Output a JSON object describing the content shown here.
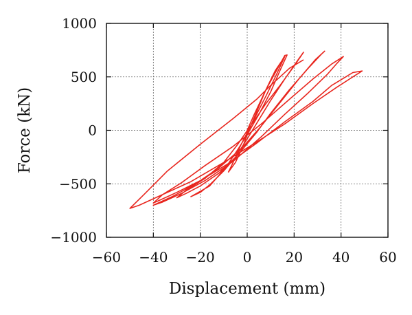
{
  "chart_data": {
    "type": "line",
    "title": "",
    "xlabel": "Displacement (mm)",
    "ylabel": "Force (kN)",
    "xlim": [
      -60,
      60
    ],
    "ylim": [
      -1000,
      1000
    ],
    "xticks": [
      -60,
      -40,
      -20,
      0,
      20,
      40,
      60
    ],
    "yticks": [
      -1000,
      -500,
      0,
      500,
      1000
    ],
    "xtick_labels": [
      "−60",
      "−40",
      "−20",
      "0",
      "20",
      "40",
      "60"
    ],
    "ytick_labels": [
      "−1000",
      "−500",
      "0",
      "500",
      "1000"
    ],
    "grid": true,
    "line_color": "#e8261e",
    "series": [
      {
        "points": [
          [
            0,
            0
          ],
          [
            3,
            150
          ],
          [
            8,
            380
          ],
          [
            12,
            560
          ],
          [
            16,
            690
          ],
          [
            12,
            500
          ],
          [
            8,
            320
          ],
          [
            4,
            150
          ],
          [
            0,
            -20
          ],
          [
            -3,
            -150
          ],
          [
            -6,
            -300
          ],
          [
            -8,
            -390
          ],
          [
            -5,
            -300
          ],
          [
            -2,
            -160
          ],
          [
            0,
            -40
          ],
          [
            3,
            120
          ],
          [
            8,
            380
          ],
          [
            16,
            700
          ],
          [
            17,
            705
          ],
          [
            14,
            560
          ],
          [
            10,
            360
          ],
          [
            5,
            150
          ],
          [
            0,
            -40
          ],
          [
            -4,
            -180
          ],
          [
            -8,
            -310
          ],
          [
            -12,
            -420
          ],
          [
            -16,
            -520
          ],
          [
            -24,
            -620
          ],
          [
            -20,
            -580
          ],
          [
            -16,
            -510
          ],
          [
            -10,
            -380
          ],
          [
            -5,
            -250
          ],
          [
            0,
            -80
          ],
          [
            5,
            100
          ],
          [
            10,
            280
          ],
          [
            16,
            480
          ],
          [
            22,
            670
          ],
          [
            24,
            730
          ],
          [
            20,
            600
          ],
          [
            14,
            420
          ],
          [
            8,
            250
          ],
          [
            2,
            60
          ],
          [
            -4,
            -130
          ],
          [
            -10,
            -300
          ],
          [
            -18,
            -450
          ],
          [
            -26,
            -560
          ],
          [
            -30,
            -630
          ],
          [
            -26,
            -590
          ],
          [
            -20,
            -520
          ],
          [
            -12,
            -400
          ],
          [
            -4,
            -230
          ],
          [
            4,
            -20
          ],
          [
            10,
            160
          ],
          [
            18,
            380
          ],
          [
            26,
            580
          ],
          [
            32,
            720
          ],
          [
            33,
            740
          ],
          [
            29,
            660
          ],
          [
            22,
            480
          ],
          [
            14,
            260
          ],
          [
            6,
            40
          ],
          [
            -2,
            -160
          ],
          [
            -12,
            -350
          ],
          [
            -22,
            -500
          ],
          [
            -32,
            -620
          ],
          [
            -40,
            -700
          ],
          [
            -36,
            -670
          ],
          [
            -28,
            -590
          ],
          [
            -18,
            -470
          ],
          [
            -6,
            -290
          ],
          [
            6,
            -60
          ],
          [
            16,
            150
          ],
          [
            26,
            350
          ],
          [
            34,
            520
          ],
          [
            38,
            620
          ],
          [
            41,
            690
          ],
          [
            36,
            620
          ],
          [
            28,
            480
          ],
          [
            18,
            290
          ],
          [
            6,
            60
          ],
          [
            -6,
            -150
          ],
          [
            -18,
            -330
          ],
          [
            -28,
            -490
          ],
          [
            -36,
            -600
          ],
          [
            -40,
            -680
          ],
          [
            -38,
            -660
          ],
          [
            -30,
            -580
          ],
          [
            -20,
            -470
          ],
          [
            -8,
            -310
          ],
          [
            4,
            -120
          ],
          [
            16,
            80
          ],
          [
            28,
            270
          ],
          [
            36,
            420
          ],
          [
            42,
            500
          ],
          [
            45,
            540
          ],
          [
            49,
            555
          ],
          [
            45,
            500
          ],
          [
            38,
            400
          ],
          [
            28,
            250
          ],
          [
            16,
            60
          ],
          [
            4,
            -110
          ],
          [
            -10,
            -300
          ],
          [
            -24,
            -480
          ],
          [
            -38,
            -620
          ],
          [
            -46,
            -700
          ],
          [
            -50,
            -730
          ],
          [
            -44,
            -600
          ],
          [
            -34,
            -380
          ],
          [
            -20,
            -130
          ],
          [
            -6,
            110
          ],
          [
            4,
            290
          ],
          [
            10,
            420
          ],
          [
            18,
            580
          ],
          [
            24,
            660
          ]
        ]
      }
    ]
  }
}
